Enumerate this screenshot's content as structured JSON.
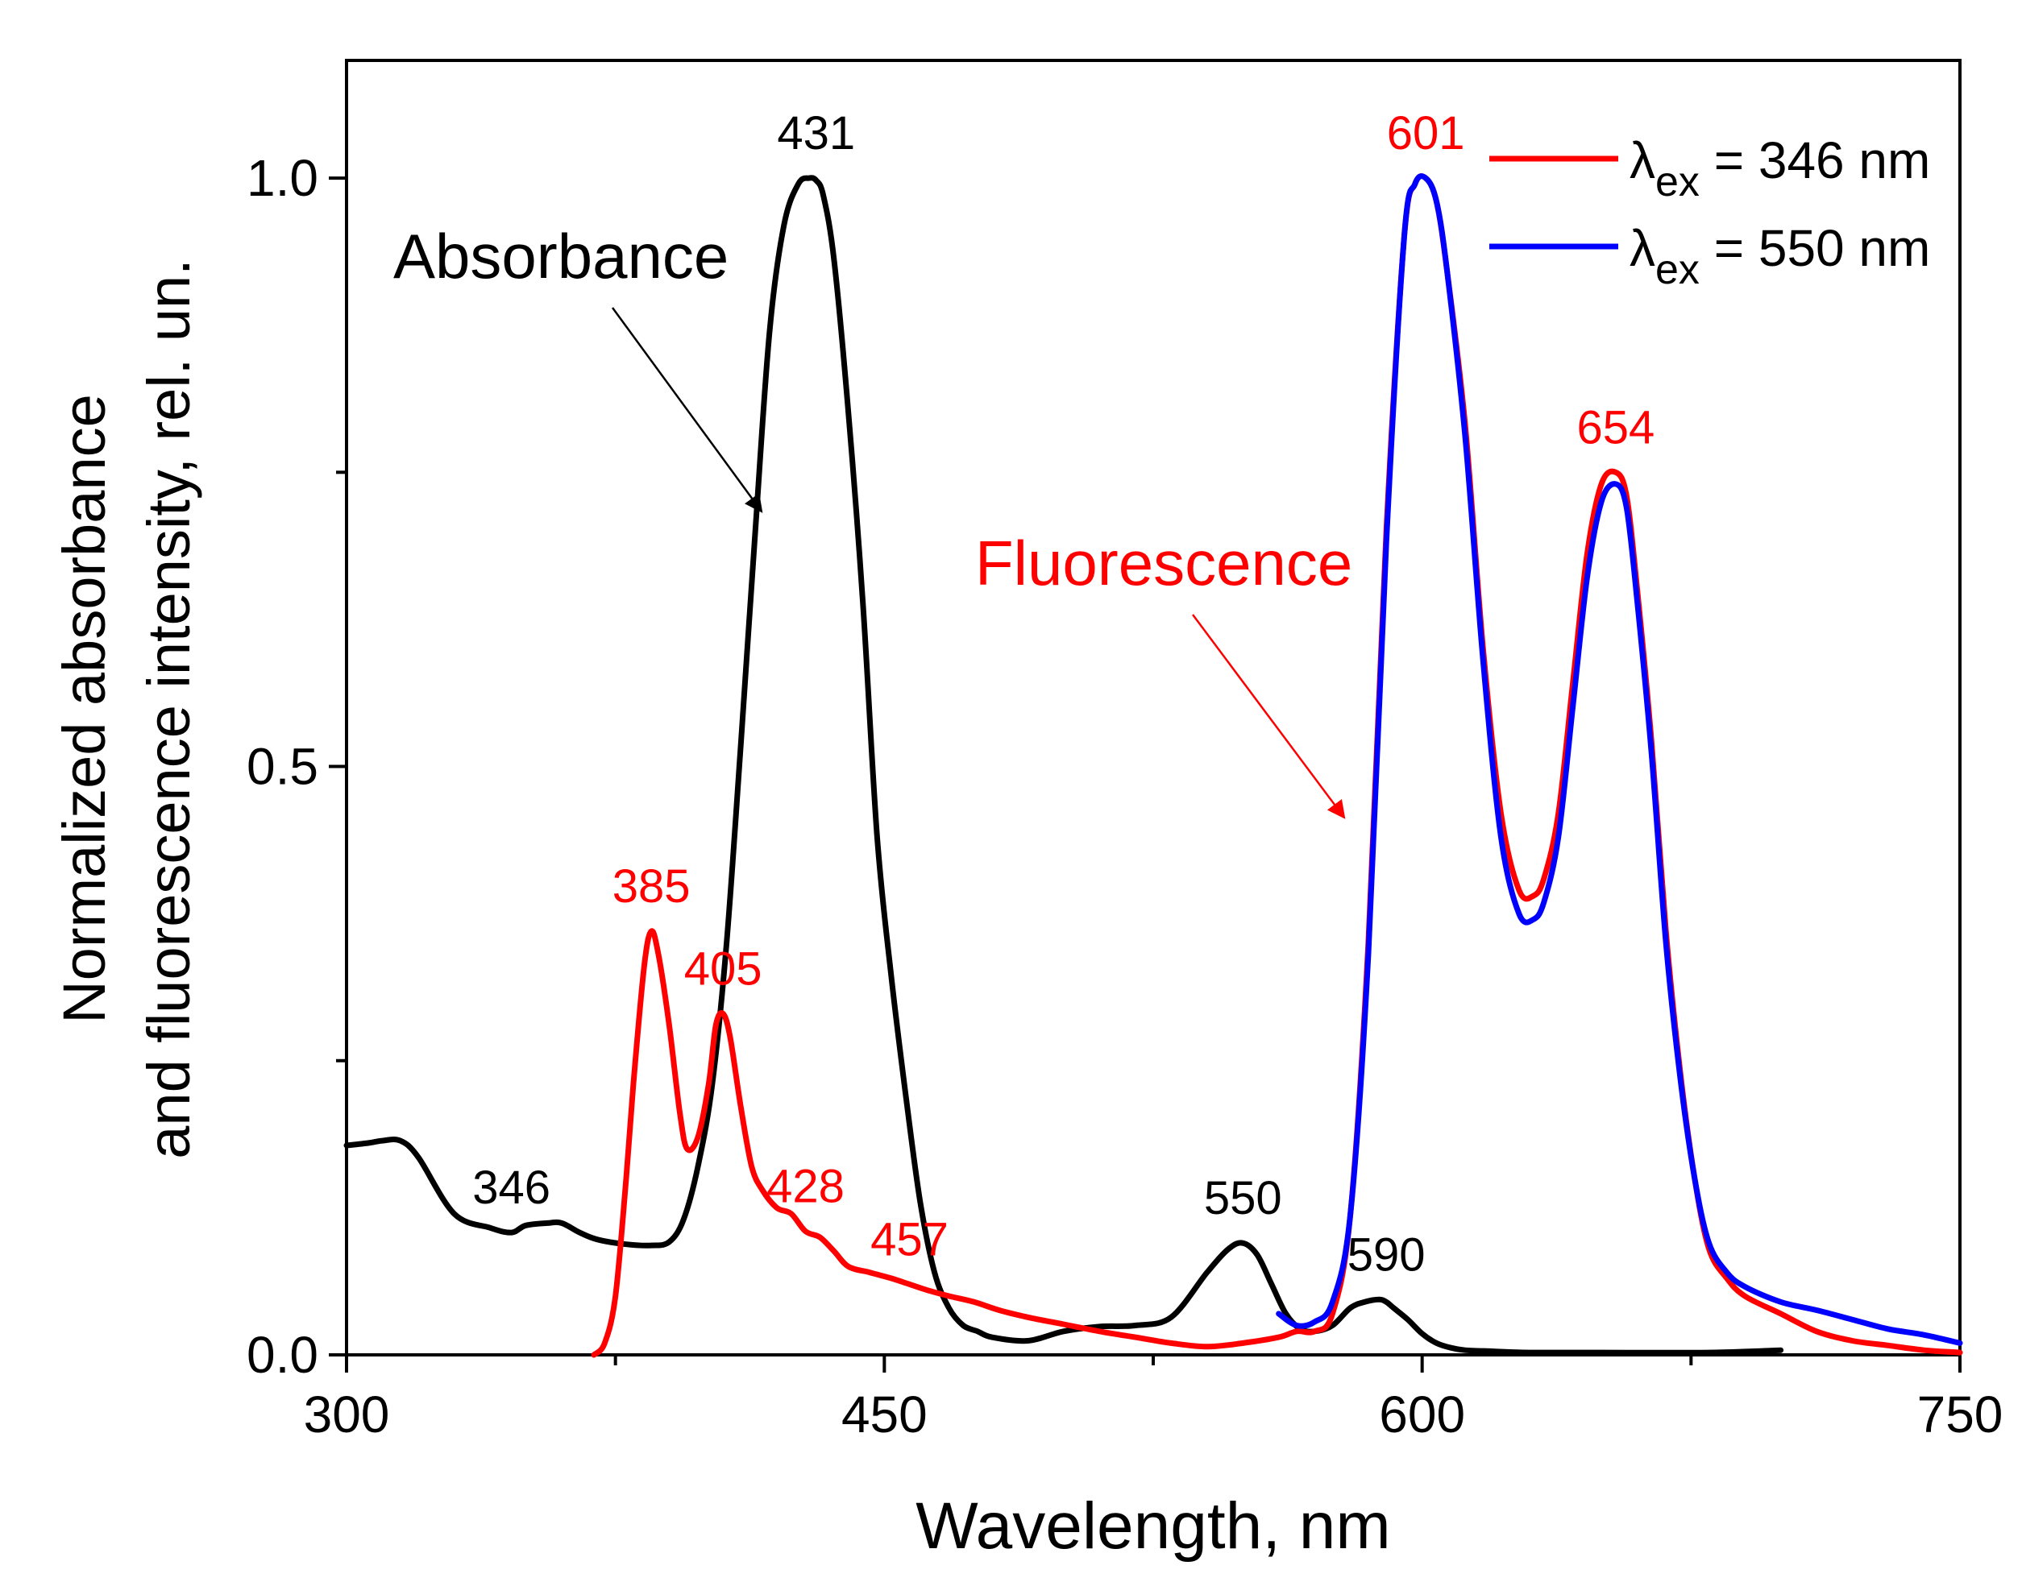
{
  "chart_data": {
    "type": "line",
    "xlabel": "Wavelength, nm",
    "ylabel_line1": "Normalized absorbance",
    "ylabel_line2": "and fluorescence intensity, rel. un.",
    "xlim": [
      300,
      750
    ],
    "ylim": [
      0,
      1.1
    ],
    "xticks_major": [
      300,
      450,
      600,
      750
    ],
    "xticks_minor": [
      375,
      525,
      675
    ],
    "yticks_major": [
      0.0,
      0.5,
      1.0
    ],
    "ytick_labels": [
      "0.0",
      "0.5",
      "1.0"
    ],
    "yticks_minor": [
      0.25,
      0.75
    ],
    "legend": {
      "position": "top-right",
      "entries": [
        {
          "prefix": "λ",
          "sub": "ex",
          "suffix": " = 346 nm",
          "color": "#ff0000"
        },
        {
          "prefix": "λ",
          "sub": "ex",
          "suffix": " = 550 nm",
          "color": "#0000ff"
        }
      ]
    },
    "series": [
      {
        "name": "Absorbance",
        "color": "#000000",
        "x": [
          300,
          306,
          310,
          315,
          320,
          330,
          340,
          346,
          350,
          356,
          360,
          365,
          370,
          378,
          385,
          390,
          394,
          398,
          402,
          406,
          410,
          414,
          418,
          422,
          426,
          429,
          431,
          433,
          436,
          440,
          444,
          448,
          452,
          456,
          460,
          464,
          468,
          472,
          476,
          480,
          490,
          500,
          510,
          520,
          530,
          540,
          546,
          550,
          554,
          558,
          562,
          566,
          570,
          575,
          580,
          584,
          588,
          590,
          592,
          596,
          600,
          604,
          608,
          612,
          620,
          630,
          650,
          680,
          700
        ],
        "y": [
          0.178,
          0.18,
          0.182,
          0.182,
          0.168,
          0.12,
          0.108,
          0.104,
          0.11,
          0.112,
          0.112,
          0.104,
          0.098,
          0.094,
          0.093,
          0.096,
          0.115,
          0.16,
          0.23,
          0.35,
          0.52,
          0.7,
          0.87,
          0.96,
          0.995,
          1.0,
          0.998,
          0.985,
          0.93,
          0.8,
          0.64,
          0.44,
          0.32,
          0.22,
          0.13,
          0.07,
          0.04,
          0.025,
          0.02,
          0.015,
          0.012,
          0.02,
          0.024,
          0.025,
          0.032,
          0.07,
          0.09,
          0.095,
          0.085,
          0.06,
          0.035,
          0.022,
          0.02,
          0.025,
          0.04,
          0.045,
          0.047,
          0.045,
          0.04,
          0.03,
          0.018,
          0.01,
          0.006,
          0.004,
          0.003,
          0.002,
          0.002,
          0.002,
          0.004
        ]
      },
      {
        "name": "Fluorescence, λex = 346 nm",
        "color": "#ff0000",
        "x": [
          369,
          372,
          375,
          378,
          380,
          383,
          385,
          387,
          390,
          393,
          395,
          398,
          401,
          403,
          405,
          407,
          410,
          413,
          416,
          420,
          424,
          428,
          432,
          436,
          440,
          446,
          452,
          457,
          462,
          468,
          475,
          482,
          490,
          500,
          510,
          520,
          530,
          540,
          550,
          560,
          565,
          570,
          575,
          580,
          585,
          590,
          595,
          598,
          601,
          604,
          607,
          612,
          617,
          622,
          627,
          631,
          634,
          638,
          642,
          646,
          650,
          654,
          657,
          660,
          664,
          668,
          672,
          676,
          680,
          685,
          690,
          700,
          710,
          720,
          730,
          740,
          750
        ],
        "y": [
          0.0,
          0.01,
          0.05,
          0.15,
          0.23,
          0.33,
          0.36,
          0.34,
          0.28,
          0.205,
          0.175,
          0.185,
          0.23,
          0.28,
          0.29,
          0.27,
          0.21,
          0.16,
          0.14,
          0.125,
          0.12,
          0.105,
          0.1,
          0.088,
          0.075,
          0.07,
          0.065,
          0.06,
          0.055,
          0.05,
          0.045,
          0.038,
          0.032,
          0.026,
          0.02,
          0.015,
          0.01,
          0.007,
          0.01,
          0.015,
          0.02,
          0.02,
          0.035,
          0.12,
          0.35,
          0.7,
          0.95,
          0.995,
          1.0,
          0.98,
          0.92,
          0.79,
          0.6,
          0.46,
          0.395,
          0.39,
          0.405,
          0.46,
          0.57,
          0.68,
          0.74,
          0.75,
          0.73,
          0.65,
          0.52,
          0.36,
          0.24,
          0.15,
          0.09,
          0.065,
          0.05,
          0.035,
          0.02,
          0.012,
          0.008,
          0.004,
          0.002
        ]
      },
      {
        "name": "Fluorescence, λex = 550 nm",
        "color": "#0000ff",
        "x": [
          560,
          565,
          570,
          575,
          580,
          585,
          590,
          595,
          598,
          601,
          604,
          607,
          612,
          617,
          622,
          627,
          631,
          634,
          638,
          642,
          646,
          650,
          654,
          657,
          660,
          664,
          668,
          672,
          676,
          680,
          685,
          690,
          700,
          710,
          720,
          730,
          740,
          750
        ],
        "y": [
          0.035,
          0.025,
          0.028,
          0.045,
          0.12,
          0.34,
          0.69,
          0.95,
          0.995,
          1.0,
          0.98,
          0.92,
          0.78,
          0.59,
          0.44,
          0.375,
          0.37,
          0.385,
          0.44,
          0.55,
          0.66,
          0.725,
          0.74,
          0.72,
          0.64,
          0.51,
          0.35,
          0.235,
          0.15,
          0.095,
          0.07,
          0.058,
          0.045,
          0.038,
          0.03,
          0.022,
          0.017,
          0.01
        ]
      }
    ],
    "peak_labels": [
      {
        "text": "431",
        "x": 431,
        "y": 1.0,
        "color": "#000000"
      },
      {
        "text": "346",
        "x": 346,
        "y": 0.104,
        "color": "#000000"
      },
      {
        "text": "550",
        "x": 550,
        "y": 0.095,
        "color": "#000000"
      },
      {
        "text": "590",
        "x": 590,
        "y": 0.047,
        "color": "#000000"
      },
      {
        "text": "385",
        "x": 385,
        "y": 0.36,
        "color": "#ff0000"
      },
      {
        "text": "405",
        "x": 405,
        "y": 0.29,
        "color": "#ff0000"
      },
      {
        "text": "428",
        "x": 428,
        "y": 0.105,
        "color": "#ff0000"
      },
      {
        "text": "457",
        "x": 457,
        "y": 0.06,
        "color": "#ff0000"
      },
      {
        "text": "601",
        "x": 601,
        "y": 1.0,
        "color": "#ff0000"
      },
      {
        "text": "654",
        "x": 654,
        "y": 0.75,
        "color": "#ff0000"
      }
    ],
    "annotations": [
      {
        "text": "Absorbance",
        "color": "#000000"
      },
      {
        "text": "Fluorescence",
        "color": "#ff0000"
      }
    ]
  }
}
